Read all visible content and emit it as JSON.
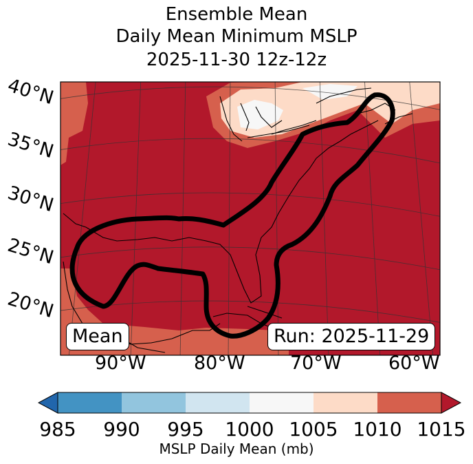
{
  "title": {
    "line1": "Ensemble Mean",
    "line2": "Daily Mean Minimum MSLP",
    "line3": "2025-11-30 12z-12z"
  },
  "map": {
    "lat_labels": [
      "40°N",
      "35°N",
      "30°N",
      "25°N",
      "20°N"
    ],
    "lon_labels": [
      "90°W",
      "80°W",
      "70°W",
      "60°W"
    ],
    "mean_label": "Mean",
    "run_label": "Run: 2025-11-29",
    "fill_color_dominant": "#b2182b"
  },
  "colorbar": {
    "ticks": [
      "985",
      "990",
      "995",
      "1000",
      "1005",
      "1010",
      "1015"
    ],
    "colors": [
      "#2166ac",
      "#4393c3",
      "#92c5de",
      "#d1e5f0",
      "#f7f7f7",
      "#fddbc7",
      "#d6604d",
      "#b2182b"
    ],
    "label": "MSLP Daily Mean (mb)",
    "units": "mb"
  }
}
